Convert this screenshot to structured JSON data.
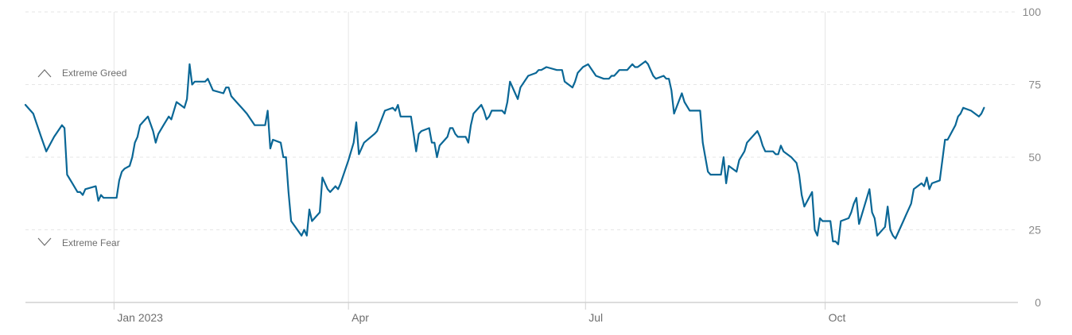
{
  "chart_data": {
    "type": "line",
    "title": "",
    "xlabel": "",
    "ylabel": "",
    "x_range": [
      "2022-11-28",
      "2023-12-14"
    ],
    "ylim": [
      0,
      100
    ],
    "y_ticks": [
      "100",
      "75",
      "50",
      "25",
      "0"
    ],
    "x_ticks": [
      {
        "date": "2023-01-01",
        "label": "Jan 2023"
      },
      {
        "date": "2023-04-01",
        "label": "Apr"
      },
      {
        "date": "2023-07-01",
        "label": "Jul"
      },
      {
        "date": "2023-10-01",
        "label": "Oct"
      }
    ],
    "annotations": {
      "upper": {
        "label": "Extreme Greed",
        "value": 79
      },
      "lower": {
        "label": "Extreme Fear",
        "value": 21
      }
    },
    "grid": "horizontal dashed at 25/50/75/100, vertical at x ticks",
    "colors": {
      "line": "#0a6796",
      "grid": "#e6e6e6",
      "axis": "#d0d0d0"
    },
    "series": [
      {
        "points": [
          [
            "2022-11-28",
            68
          ],
          [
            "2022-12-01",
            65
          ],
          [
            "2022-12-04",
            57
          ],
          [
            "2022-12-06",
            52
          ],
          [
            "2022-12-09",
            57
          ],
          [
            "2022-12-12",
            61
          ],
          [
            "2022-12-13",
            60
          ],
          [
            "2022-12-14",
            44
          ],
          [
            "2022-12-16",
            41
          ],
          [
            "2022-12-18",
            38
          ],
          [
            "2022-12-19",
            38
          ],
          [
            "2022-12-20",
            37
          ],
          [
            "2022-12-21",
            39
          ],
          [
            "2022-12-25",
            40
          ],
          [
            "2022-12-26",
            35
          ],
          [
            "2022-12-27",
            37
          ],
          [
            "2022-12-28",
            36
          ],
          [
            "2023-01-02",
            36
          ],
          [
            "2023-01-03",
            42
          ],
          [
            "2023-01-04",
            45
          ],
          [
            "2023-01-05",
            46
          ],
          [
            "2023-01-07",
            47
          ],
          [
            "2023-01-08",
            50
          ],
          [
            "2023-01-09",
            55
          ],
          [
            "2023-01-10",
            57
          ],
          [
            "2023-01-11",
            61
          ],
          [
            "2023-01-13",
            63
          ],
          [
            "2023-01-14",
            64
          ],
          [
            "2023-01-16",
            59
          ],
          [
            "2023-01-17",
            55
          ],
          [
            "2023-01-18",
            58
          ],
          [
            "2023-01-20",
            61
          ],
          [
            "2023-01-22",
            64
          ],
          [
            "2023-01-23",
            63
          ],
          [
            "2023-01-24",
            66
          ],
          [
            "2023-01-25",
            69
          ],
          [
            "2023-01-28",
            67
          ],
          [
            "2023-01-29",
            70
          ],
          [
            "2023-01-30",
            82
          ],
          [
            "2023-01-31",
            75
          ],
          [
            "2023-02-01",
            76
          ],
          [
            "2023-02-05",
            76
          ],
          [
            "2023-02-06",
            77
          ],
          [
            "2023-02-08",
            73
          ],
          [
            "2023-02-12",
            72
          ],
          [
            "2023-02-13",
            74
          ],
          [
            "2023-02-14",
            74
          ],
          [
            "2023-02-15",
            71
          ],
          [
            "2023-02-17",
            69
          ],
          [
            "2023-02-19",
            67
          ],
          [
            "2023-02-21",
            65
          ],
          [
            "2023-02-24",
            61
          ],
          [
            "2023-02-25",
            61
          ],
          [
            "2023-02-28",
            61
          ],
          [
            "2023-03-01",
            66
          ],
          [
            "2023-03-02",
            53
          ],
          [
            "2023-03-03",
            56
          ],
          [
            "2023-03-06",
            55
          ],
          [
            "2023-03-07",
            50
          ],
          [
            "2023-03-08",
            50
          ],
          [
            "2023-03-09",
            38
          ],
          [
            "2023-03-10",
            28
          ],
          [
            "2023-03-14",
            23
          ],
          [
            "2023-03-15",
            25
          ],
          [
            "2023-03-16",
            23
          ],
          [
            "2023-03-17",
            32
          ],
          [
            "2023-03-18",
            28
          ],
          [
            "2023-03-21",
            31
          ],
          [
            "2023-03-22",
            43
          ],
          [
            "2023-03-24",
            39
          ],
          [
            "2023-03-25",
            38
          ],
          [
            "2023-03-27",
            40
          ],
          [
            "2023-03-28",
            39
          ],
          [
            "2023-03-29",
            41
          ],
          [
            "2023-04-01",
            49
          ],
          [
            "2023-04-03",
            55
          ],
          [
            "2023-04-04",
            62
          ],
          [
            "2023-04-05",
            51
          ],
          [
            "2023-04-07",
            55
          ],
          [
            "2023-04-11",
            58
          ],
          [
            "2023-04-12",
            59
          ],
          [
            "2023-04-15",
            66
          ],
          [
            "2023-04-18",
            67
          ],
          [
            "2023-04-19",
            66
          ],
          [
            "2023-04-20",
            68
          ],
          [
            "2023-04-21",
            64
          ],
          [
            "2023-04-22",
            64
          ],
          [
            "2023-04-25",
            64
          ],
          [
            "2023-04-26",
            58
          ],
          [
            "2023-04-27",
            52
          ],
          [
            "2023-04-28",
            58
          ],
          [
            "2023-04-29",
            59
          ],
          [
            "2023-05-02",
            60
          ],
          [
            "2023-05-03",
            55
          ],
          [
            "2023-05-04",
            55
          ],
          [
            "2023-05-05",
            50
          ],
          [
            "2023-05-06",
            54
          ],
          [
            "2023-05-08",
            56
          ],
          [
            "2023-05-09",
            57
          ],
          [
            "2023-05-10",
            60
          ],
          [
            "2023-05-11",
            60
          ],
          [
            "2023-05-12",
            58
          ],
          [
            "2023-05-13",
            57
          ],
          [
            "2023-05-16",
            57
          ],
          [
            "2023-05-17",
            55
          ],
          [
            "2023-05-18",
            61
          ],
          [
            "2023-05-19",
            65
          ],
          [
            "2023-05-22",
            68
          ],
          [
            "2023-05-23",
            66
          ],
          [
            "2023-05-24",
            63
          ],
          [
            "2023-05-25",
            64
          ],
          [
            "2023-05-26",
            66
          ],
          [
            "2023-05-30",
            66
          ],
          [
            "2023-05-31",
            65
          ],
          [
            "2023-06-01",
            69
          ],
          [
            "2023-06-02",
            76
          ],
          [
            "2023-06-04",
            72
          ],
          [
            "2023-06-05",
            70
          ],
          [
            "2023-06-06",
            74
          ],
          [
            "2023-06-09",
            78
          ],
          [
            "2023-06-12",
            79
          ],
          [
            "2023-06-13",
            80
          ],
          [
            "2023-06-14",
            80
          ],
          [
            "2023-06-16",
            81
          ],
          [
            "2023-06-20",
            80
          ],
          [
            "2023-06-22",
            80
          ],
          [
            "2023-06-23",
            76
          ],
          [
            "2023-06-26",
            74
          ],
          [
            "2023-06-27",
            76
          ],
          [
            "2023-06-28",
            79
          ],
          [
            "2023-06-29",
            80
          ],
          [
            "2023-06-30",
            81
          ],
          [
            "2023-07-02",
            82
          ],
          [
            "2023-07-05",
            78
          ],
          [
            "2023-07-08",
            77
          ],
          [
            "2023-07-10",
            77
          ],
          [
            "2023-07-11",
            78
          ],
          [
            "2023-07-12",
            78
          ],
          [
            "2023-07-13",
            79
          ],
          [
            "2023-07-14",
            80
          ],
          [
            "2023-07-17",
            80
          ],
          [
            "2023-07-18",
            81
          ],
          [
            "2023-07-19",
            82
          ],
          [
            "2023-07-20",
            81
          ],
          [
            "2023-07-21",
            81
          ],
          [
            "2023-07-24",
            83
          ],
          [
            "2023-07-25",
            82
          ],
          [
            "2023-07-26",
            80
          ],
          [
            "2023-07-27",
            78
          ],
          [
            "2023-07-28",
            77
          ],
          [
            "2023-07-31",
            78
          ],
          [
            "2023-08-01",
            77
          ],
          [
            "2023-08-02",
            77
          ],
          [
            "2023-08-03",
            73
          ],
          [
            "2023-08-04",
            65
          ],
          [
            "2023-08-07",
            72
          ],
          [
            "2023-08-08",
            69
          ],
          [
            "2023-08-10",
            66
          ],
          [
            "2023-08-11",
            66
          ],
          [
            "2023-08-14",
            66
          ],
          [
            "2023-08-15",
            55
          ],
          [
            "2023-08-16",
            50
          ],
          [
            "2023-08-17",
            45
          ],
          [
            "2023-08-18",
            44
          ],
          [
            "2023-08-22",
            44
          ],
          [
            "2023-08-23",
            50
          ],
          [
            "2023-08-24",
            41
          ],
          [
            "2023-08-25",
            47
          ],
          [
            "2023-08-28",
            45
          ],
          [
            "2023-08-29",
            49
          ],
          [
            "2023-08-31",
            52
          ],
          [
            "2023-09-01",
            55
          ],
          [
            "2023-09-05",
            59
          ],
          [
            "2023-09-06",
            57
          ],
          [
            "2023-09-07",
            54
          ],
          [
            "2023-09-08",
            52
          ],
          [
            "2023-09-11",
            52
          ],
          [
            "2023-09-12",
            51
          ],
          [
            "2023-09-13",
            51
          ],
          [
            "2023-09-14",
            54
          ],
          [
            "2023-09-15",
            52
          ],
          [
            "2023-09-18",
            50
          ],
          [
            "2023-09-19",
            49
          ],
          [
            "2023-09-20",
            48
          ],
          [
            "2023-09-21",
            44
          ],
          [
            "2023-09-22",
            37
          ],
          [
            "2023-09-23",
            33
          ],
          [
            "2023-09-26",
            38
          ],
          [
            "2023-09-27",
            25
          ],
          [
            "2023-09-28",
            23
          ],
          [
            "2023-09-29",
            29
          ],
          [
            "2023-09-30",
            28
          ],
          [
            "2023-10-03",
            28
          ],
          [
            "2023-10-04",
            21
          ],
          [
            "2023-10-05",
            21
          ],
          [
            "2023-10-06",
            20
          ],
          [
            "2023-10-07",
            28
          ],
          [
            "2023-10-10",
            29
          ],
          [
            "2023-10-11",
            31
          ],
          [
            "2023-10-12",
            34
          ],
          [
            "2023-10-13",
            36
          ],
          [
            "2023-10-14",
            27
          ],
          [
            "2023-10-18",
            39
          ],
          [
            "2023-10-19",
            31
          ],
          [
            "2023-10-20",
            29
          ],
          [
            "2023-10-21",
            23
          ],
          [
            "2023-10-24",
            26
          ],
          [
            "2023-10-25",
            33
          ],
          [
            "2023-10-26",
            25
          ],
          [
            "2023-10-27",
            23
          ],
          [
            "2023-10-28",
            22
          ],
          [
            "2023-10-31",
            28
          ],
          [
            "2023-11-01",
            30
          ],
          [
            "2023-11-03",
            34
          ],
          [
            "2023-11-04",
            39
          ],
          [
            "2023-11-07",
            41
          ],
          [
            "2023-11-08",
            40
          ],
          [
            "2023-11-09",
            43
          ],
          [
            "2023-11-10",
            39
          ],
          [
            "2023-11-11",
            41
          ],
          [
            "2023-11-14",
            42
          ],
          [
            "2023-11-15",
            49
          ],
          [
            "2023-11-16",
            56
          ],
          [
            "2023-11-17",
            56
          ],
          [
            "2023-11-20",
            61
          ],
          [
            "2023-11-21",
            64
          ],
          [
            "2023-11-22",
            65
          ],
          [
            "2023-11-23",
            67
          ],
          [
            "2023-11-26",
            66
          ],
          [
            "2023-11-29",
            64
          ],
          [
            "2023-11-30",
            65
          ],
          [
            "2023-12-01",
            67
          ]
        ]
      }
    ]
  }
}
